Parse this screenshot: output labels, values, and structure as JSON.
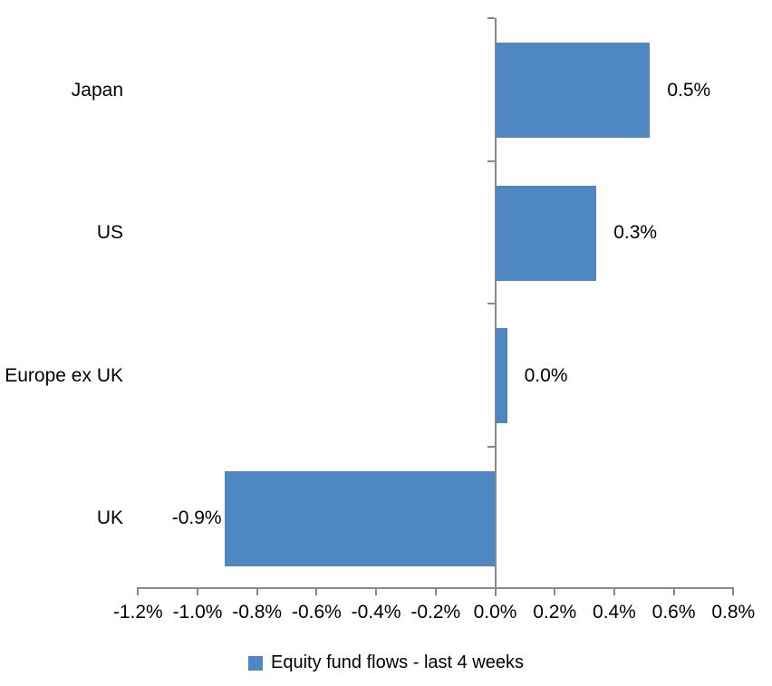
{
  "chart_data": {
    "type": "bar",
    "orientation": "horizontal",
    "title": "",
    "xlabel": "",
    "ylabel": "",
    "categories": [
      "Japan",
      "US",
      "Europe ex UK",
      "UK"
    ],
    "series": [
      {
        "name": "Equity fund flows - last 4 weeks",
        "values": [
          0.52,
          0.34,
          0.04,
          -0.91
        ],
        "value_labels": [
          "0.5%",
          "0.3%",
          "0.0%",
          "-0.9%"
        ]
      }
    ],
    "xlim": [
      -1.2,
      0.8
    ],
    "x_tick_step": 0.2,
    "x_tick_labels": [
      "-1.2%",
      "-1.0%",
      "-0.8%",
      "-0.6%",
      "-0.4%",
      "-0.2%",
      "0.0%",
      "0.2%",
      "0.4%",
      "0.6%",
      "0.8%"
    ],
    "grid": false,
    "legend": {
      "position": "bottom",
      "label": "Equity fund flows - last 4 weeks"
    },
    "colors": {
      "bar": "#4E87C1",
      "axis": "#898989",
      "text": "#000000",
      "background": "#FFFFFF"
    }
  }
}
